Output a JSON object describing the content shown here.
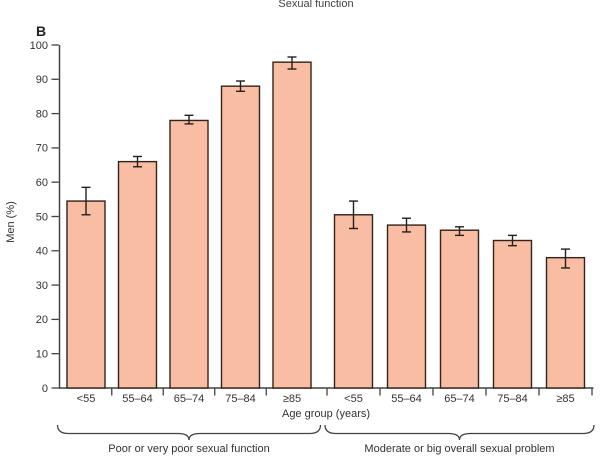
{
  "chart_data": {
    "type": "bar",
    "panel_label": "B",
    "title": "Sexual function",
    "ylabel": "Men (%)",
    "xlabel": "Age group (years)",
    "ylim": [
      0,
      100
    ],
    "yticks": [
      0,
      10,
      20,
      30,
      40,
      50,
      60,
      70,
      80,
      90,
      100
    ],
    "grid": false,
    "legend": false,
    "categories": [
      "<55",
      "55–64",
      "65–74",
      "75–84",
      "≥85",
      "<55",
      "55–64",
      "65–74",
      "75–84",
      "≥85"
    ],
    "values": [
      54.5,
      66,
      78,
      88,
      95,
      50.5,
      47.5,
      46,
      43,
      38
    ],
    "ci_low": [
      50.5,
      64.5,
      77,
      86.5,
      93,
      46.5,
      45.5,
      44.5,
      41.5,
      35
    ],
    "ci_high": [
      58.5,
      67.5,
      79.5,
      89.5,
      96.5,
      54.5,
      49.5,
      47,
      44.5,
      40.5
    ],
    "groups": [
      {
        "label": "Poor or very poor sexual function",
        "start_index": 0,
        "end_index": 4
      },
      {
        "label": "Moderate or big overall sexual problem",
        "start_index": 5,
        "end_index": 9
      }
    ],
    "colors": {
      "bar_fill": "#f8bda2",
      "bar_border": "#33231a",
      "error_bar": "#24201d",
      "axis": "#45423f",
      "text": "#35322f"
    }
  }
}
